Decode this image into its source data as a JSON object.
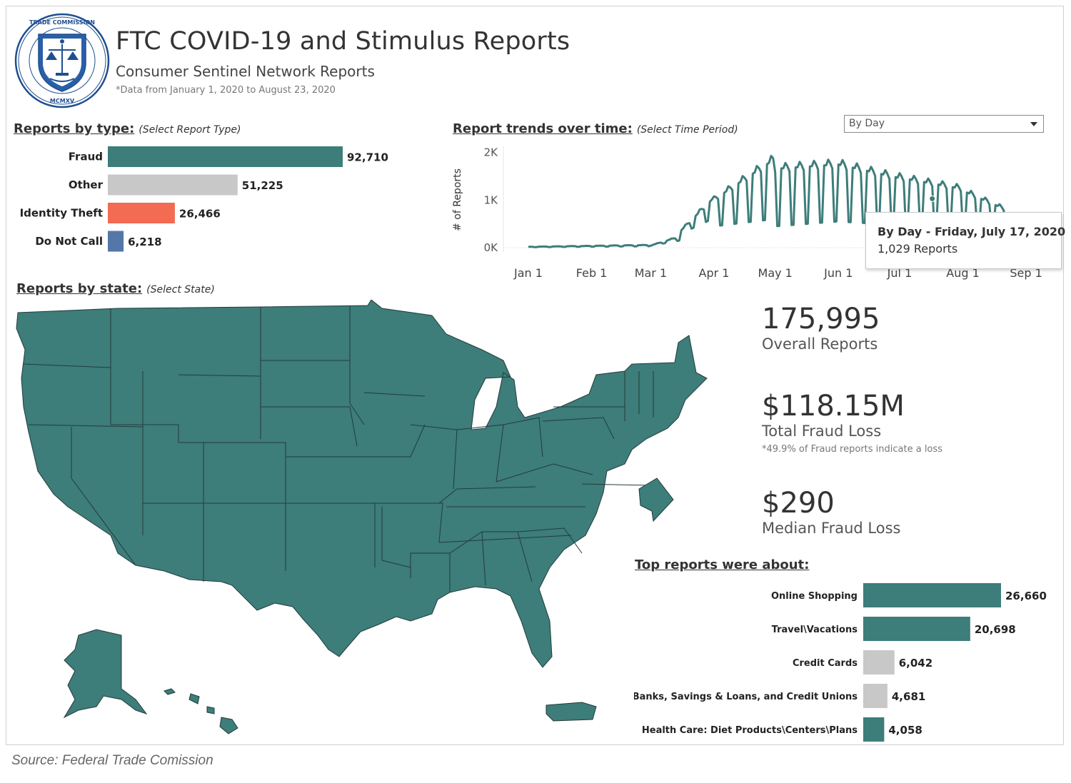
{
  "header": {
    "title": "FTC COVID-19 and Stimulus Reports",
    "subtitle": "Consumer Sentinel Network Reports",
    "note": "*Data from January 1, 2020 to August 23, 2020"
  },
  "sections": {
    "by_type": {
      "heading": "Reports by type:",
      "hint": "(Select Report Type)"
    },
    "trends": {
      "heading": "Report trends over time:",
      "hint": "(Select Time Period)"
    },
    "by_state": {
      "heading": "Reports by state:",
      "hint": "(Select State)"
    },
    "top": {
      "heading": "Top reports were about:"
    }
  },
  "dropdown": {
    "value": "By Day"
  },
  "tooltip": {
    "line1": "By Day - Friday, July 17, 2020",
    "line2": "1,029 Reports"
  },
  "kpis": {
    "overall": {
      "value": "175,995",
      "label": "Overall Reports"
    },
    "loss": {
      "value": "$118.15M",
      "label": "Total Fraud Loss",
      "note": "*49.9% of Fraud reports indicate a loss"
    },
    "median": {
      "value": "$290",
      "label": "Median Fraud Loss"
    }
  },
  "source": "Source: Federal Trade Comission",
  "colors": {
    "teal": "#3d7d7a",
    "gray": "#c8c8c8",
    "coral": "#f26b52",
    "blue": "#5577a8"
  },
  "chart_data": [
    {
      "type": "bar",
      "orientation": "horizontal",
      "categories": [
        "Fraud",
        "Other",
        "Identity Theft",
        "Do Not Call"
      ],
      "values": [
        92710,
        51225,
        26466,
        6218
      ],
      "labels": [
        "92,710",
        "51,225",
        "26,466",
        "6,218"
      ],
      "colors": [
        "#3d7d7a",
        "#c8c8c8",
        "#f26b52",
        "#5577a8"
      ]
    },
    {
      "type": "line",
      "ylabel": "# of Reports",
      "yticks": [
        "0K",
        "1K",
        "2K"
      ],
      "ylim": [
        0,
        2100
      ],
      "xticks": [
        "Jan 1",
        "Feb 1",
        "Mar 1",
        "Apr 1",
        "May 1",
        "Jun 1",
        "Jul 1",
        "Aug 1",
        "Sep 1"
      ],
      "x_range": [
        "2020-01-01",
        "2020-08-23"
      ],
      "highlight": {
        "date": "2020-07-17",
        "value": 1029
      },
      "weekly_pattern": true,
      "segments": [
        {
          "from": "2020-01-01",
          "to": "2020-02-29",
          "weekday": [
            20,
            60
          ],
          "weekend": [
            10,
            30
          ]
        },
        {
          "from": "2020-03-01",
          "to": "2020-03-15",
          "weekday": [
            50,
            250
          ],
          "weekend": [
            40,
            150
          ]
        },
        {
          "from": "2020-03-16",
          "to": "2020-03-31",
          "weekday": [
            400,
            1100
          ],
          "weekend": [
            300,
            600
          ]
        },
        {
          "from": "2020-04-01",
          "to": "2020-04-30",
          "weekday": [
            1100,
            2000
          ],
          "weekend": [
            450,
            600
          ]
        },
        {
          "from": "2020-05-01",
          "to": "2020-05-31",
          "weekday": [
            1800,
            1900
          ],
          "weekend": [
            450,
            550
          ]
        },
        {
          "from": "2020-06-01",
          "to": "2020-06-30",
          "weekday": [
            1900,
            1600
          ],
          "weekend": [
            550,
            480
          ]
        },
        {
          "from": "2020-07-01",
          "to": "2020-07-31",
          "weekday": [
            1600,
            1350
          ],
          "weekend": [
            480,
            420
          ]
        },
        {
          "from": "2020-08-01",
          "to": "2020-08-23",
          "weekday": [
            1300,
            850
          ],
          "weekend": [
            420,
            450
          ]
        }
      ]
    },
    {
      "type": "bar",
      "orientation": "horizontal",
      "categories": [
        "Online Shopping",
        "Travel\\Vacations",
        "Credit Cards",
        "Banks, Savings & Loans, and Credit Unions",
        "Health Care: Diet Products\\Centers\\Plans"
      ],
      "values": [
        26660,
        20698,
        6042,
        4681,
        4058
      ],
      "labels": [
        "26,660",
        "20,698",
        "6,042",
        "4,681",
        "4,058"
      ],
      "colors": [
        "#3d7d7a",
        "#3d7d7a",
        "#c8c8c8",
        "#c8c8c8",
        "#3d7d7a"
      ]
    }
  ]
}
